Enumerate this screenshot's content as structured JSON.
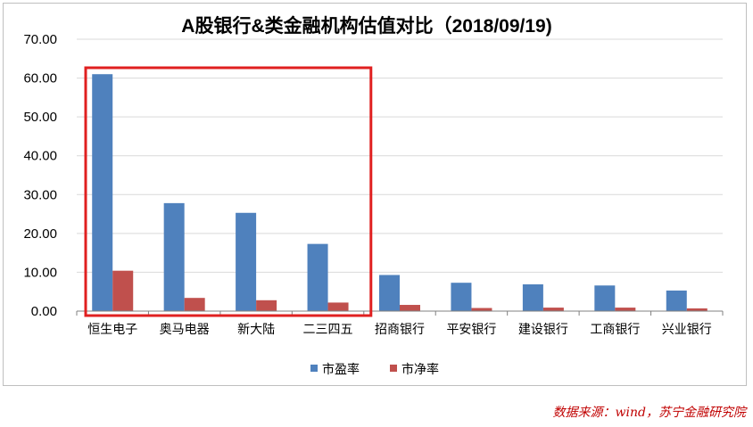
{
  "chart_data": {
    "type": "bar",
    "title": "A股银行&类金融机构估值对比（2018/09/19)",
    "categories": [
      "恒生电子",
      "奥马电器",
      "新大陆",
      "二三四五",
      "招商银行",
      "平安银行",
      "建设银行",
      "工商银行",
      "兴业银行"
    ],
    "series": [
      {
        "name": "市盈率",
        "color": "#4f81bd",
        "values": [
          61.0,
          27.8,
          25.3,
          17.3,
          9.3,
          7.3,
          6.9,
          6.6,
          5.3
        ]
      },
      {
        "name": "市净率",
        "color": "#c0504d",
        "values": [
          10.4,
          3.4,
          2.8,
          2.2,
          1.6,
          0.8,
          0.9,
          0.9,
          0.7
        ]
      }
    ],
    "ylim": [
      0,
      70
    ],
    "yticks": [
      "0.00",
      "10.00",
      "20.00",
      "30.00",
      "40.00",
      "50.00",
      "60.00",
      "70.00"
    ],
    "grid": true,
    "legend": "bottom",
    "highlight": {
      "from": "恒生电子",
      "to": "二三四五",
      "color": "#e02020"
    }
  },
  "source": "数据来源：wind，苏宁金融研究院"
}
